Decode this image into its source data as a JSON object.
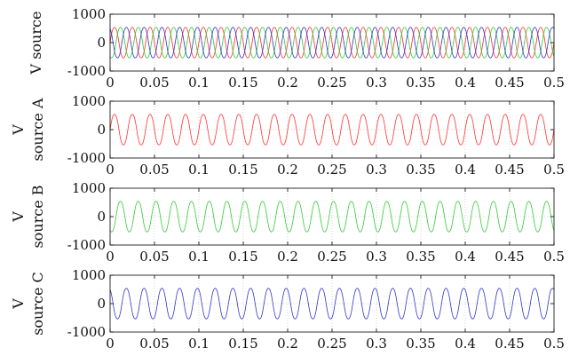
{
  "chart_data": [
    {
      "type": "line",
      "ylabel_lines": [
        "V source"
      ],
      "xlim": [
        0,
        0.5
      ],
      "ylim": [
        -1000,
        1000
      ],
      "x_ticks": [
        "0",
        "0.05",
        "0.1",
        "0.15",
        "0.2",
        "0.25",
        "0.3",
        "0.35",
        "0.4",
        "0.45",
        "0.5"
      ],
      "y_ticks": [
        "1000",
        "0",
        "-1000"
      ],
      "grid": true,
      "series": [
        {
          "phase_deg": 0,
          "amplitude": 560,
          "frequency_hz": 50,
          "color": "#ff3333"
        },
        {
          "phase_deg": -120,
          "amplitude": 560,
          "frequency_hz": 50,
          "color": "#33cc33"
        },
        {
          "phase_deg": 120,
          "amplitude": 560,
          "frequency_hz": 50,
          "color": "#3333cc"
        }
      ]
    },
    {
      "type": "line",
      "ylabel_lines": [
        "V",
        "source A"
      ],
      "xlim": [
        0,
        0.5
      ],
      "ylim": [
        -1000,
        1000
      ],
      "x_ticks": [
        "0",
        "0.05",
        "0.1",
        "0.15",
        "0.2",
        "0.25",
        "0.3",
        "0.35",
        "0.4",
        "0.45",
        "0.5"
      ],
      "y_ticks": [
        "1000",
        "0",
        "-1000"
      ],
      "grid": true,
      "series": [
        {
          "phase_deg": 0,
          "amplitude": 560,
          "frequency_hz": 50,
          "color": "#ff3333"
        }
      ]
    },
    {
      "type": "line",
      "ylabel_lines": [
        "V",
        "source B"
      ],
      "xlim": [
        0,
        0.5
      ],
      "ylim": [
        -1000,
        1000
      ],
      "x_ticks": [
        "0",
        "0.05",
        "0.1",
        "0.15",
        "0.2",
        "0.25",
        "0.3",
        "0.35",
        "0.4",
        "0.45",
        "0.5"
      ],
      "y_ticks": [
        "1000",
        "0",
        "-1000"
      ],
      "grid": true,
      "series": [
        {
          "phase_deg": -120,
          "amplitude": 560,
          "frequency_hz": 50,
          "color": "#33cc33"
        }
      ]
    },
    {
      "type": "line",
      "ylabel_lines": [
        "V",
        "source C"
      ],
      "xlim": [
        0,
        0.5
      ],
      "ylim": [
        -1000,
        1000
      ],
      "x_ticks": [
        "0",
        "0.05",
        "0.1",
        "0.15",
        "0.2",
        "0.25",
        "0.3",
        "0.35",
        "0.4",
        "0.45",
        "0.5"
      ],
      "y_ticks": [
        "1000",
        "0",
        "-1000"
      ],
      "grid": true,
      "series": [
        {
          "phase_deg": 120,
          "amplitude": 560,
          "frequency_hz": 50,
          "color": "#3333cc"
        }
      ]
    }
  ]
}
